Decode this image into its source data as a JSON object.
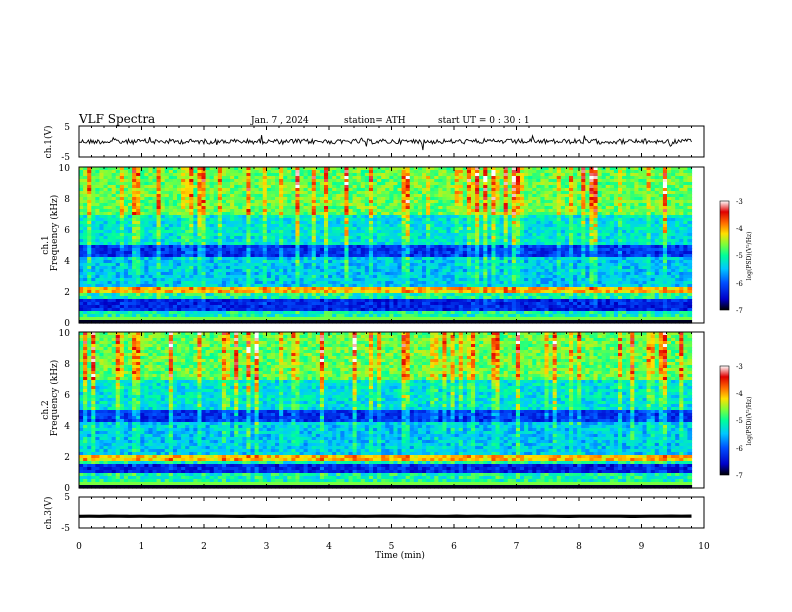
{
  "header": {
    "title": "VLF  Spectra",
    "date": "Jan.  7  , 2024",
    "station": "station= ATH",
    "start": "start  UT  =    0  : 30 : 1"
  },
  "chart_data": {
    "type": "heatmap",
    "panels": [
      {
        "name": "ch.1(V)",
        "kind": "line",
        "yticks": [
          "5",
          "-5"
        ],
        "ylim": [
          -5,
          5
        ],
        "x_extent_min": [
          0,
          9.8
        ],
        "wave_level": 0
      },
      {
        "name": "ch.1 Frequency (kHz)",
        "kind": "spectrogram",
        "ylabel_top": "ch.1",
        "ylabel": "Frequency  (kHz)",
        "yticks": [
          "10",
          "8",
          "6",
          "4",
          "2",
          "0"
        ],
        "ylim_khz": [
          0,
          10
        ],
        "x_extent_min": [
          0,
          9.8
        ],
        "strong_band_khz": [
          1.9,
          2.3
        ],
        "dark_band_khz": [
          0.8,
          1.6
        ]
      },
      {
        "name": "ch.2 Frequency (kHz)",
        "kind": "spectrogram",
        "ylabel_top": "ch.2",
        "ylabel": "Frequency  (kHz)",
        "yticks": [
          "10",
          "8",
          "6",
          "4",
          "2",
          "0"
        ],
        "ylim_khz": [
          0,
          10
        ],
        "x_extent_min": [
          0,
          9.8
        ],
        "strong_band_khz": [
          1.7,
          2.2
        ],
        "dark_band_khz": [
          0.9,
          1.5
        ]
      },
      {
        "name": "ch.3(V)",
        "kind": "line",
        "yticks": [
          "5",
          "-5"
        ],
        "ylim": [
          -5,
          5
        ],
        "x_extent_min": [
          0,
          9.8
        ],
        "wave_level": -1.2
      }
    ],
    "colorbars": [
      {
        "label": "log(PSD)(V²/Hz)",
        "ticks": [
          "-3",
          "-4",
          "-5",
          "-6",
          "-7"
        ],
        "range": [
          -7,
          -3
        ]
      },
      {
        "label": "log(PSD)(V²/Hz)",
        "ticks": [
          "-3",
          "-4",
          "-5",
          "-6",
          "-7"
        ],
        "range": [
          -7,
          -3
        ]
      }
    ],
    "colormap": [
      "#000000",
      "#0000c8",
      "#0050ff",
      "#00c8ff",
      "#00ff9a",
      "#7cff3a",
      "#ffe000",
      "#ff6a00",
      "#e00000",
      "#ffffff"
    ],
    "x": {
      "label": "Time  (min)",
      "ticks": [
        "0",
        "1",
        "2",
        "3",
        "4",
        "5",
        "6",
        "7",
        "8",
        "9",
        "10"
      ],
      "xlim": [
        0,
        10
      ]
    }
  }
}
